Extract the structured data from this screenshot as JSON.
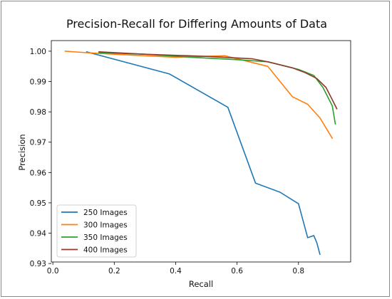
{
  "chart_data": {
    "type": "line",
    "title": "Precision-Recall for Differing Amounts of Data",
    "xlabel": "Recall",
    "ylabel": "Precision",
    "xlim": [
      -0.005,
      0.97
    ],
    "ylim": [
      0.9305,
      1.0035
    ],
    "xticks": [
      0.0,
      0.2,
      0.4,
      0.6,
      0.8
    ],
    "xtick_labels": [
      "0.0",
      "0.2",
      "0.4",
      "0.6",
      "0.8"
    ],
    "yticks": [
      0.93,
      0.94,
      0.95,
      0.96,
      0.97,
      0.98,
      0.99,
      1.0
    ],
    "ytick_labels": [
      "0.93",
      "0.94",
      "0.95",
      "0.96",
      "0.97",
      "0.98",
      "0.99",
      "1.00"
    ],
    "grid": false,
    "legend_position": "lower-left",
    "series": [
      {
        "name": "250 Images",
        "color": "#1f77b4",
        "x": [
          0.11,
          0.38,
          0.57,
          0.66,
          0.74,
          0.8,
          0.83,
          0.85,
          0.86,
          0.87
        ],
        "y": [
          0.9998,
          0.9925,
          0.9815,
          0.9565,
          0.9535,
          0.9497,
          0.9385,
          0.9392,
          0.9368,
          0.933
        ]
      },
      {
        "name": "300 Images",
        "color": "#ff7f0e",
        "x": [
          0.04,
          0.11,
          0.2,
          0.4,
          0.56,
          0.7,
          0.78,
          0.83,
          0.87,
          0.9,
          0.91
        ],
        "y": [
          1.0,
          0.9995,
          0.999,
          0.998,
          0.9985,
          0.995,
          0.985,
          0.9825,
          0.978,
          0.973,
          0.9713
        ]
      },
      {
        "name": "350 Images",
        "color": "#2ca02c",
        "x": [
          0.15,
          0.3,
          0.45,
          0.6,
          0.7,
          0.8,
          0.85,
          0.88,
          0.91,
          0.92
        ],
        "y": [
          0.9995,
          0.999,
          0.998,
          0.9972,
          0.9965,
          0.994,
          0.992,
          0.988,
          0.982,
          0.976
        ]
      },
      {
        "name": "400 Images",
        "color": "#8c3a2c",
        "x": [
          0.15,
          0.3,
          0.5,
          0.65,
          0.7,
          0.78,
          0.82,
          0.86,
          0.89,
          0.91,
          0.925
        ],
        "y": [
          0.9998,
          0.999,
          0.9983,
          0.9975,
          0.9965,
          0.9945,
          0.993,
          0.991,
          0.988,
          0.984,
          0.981
        ]
      }
    ]
  }
}
